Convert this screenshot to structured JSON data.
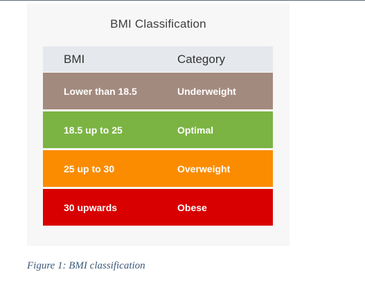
{
  "figure": {
    "title": "BMI Classification",
    "caption": "Figure 1: BMI classification"
  },
  "table": {
    "headers": [
      "BMI",
      "Category"
    ],
    "rows": [
      {
        "bmi": "Lower than 18.5",
        "category": "Underweight",
        "color": "#a38a7e"
      },
      {
        "bmi": "18.5 up to 25",
        "category": "Optimal",
        "color": "#7bb443"
      },
      {
        "bmi": "25 up to 30",
        "category": "Overweight",
        "color": "#fb8c00"
      },
      {
        "bmi": "30 upwards",
        "category": "Obese",
        "color": "#d80000"
      }
    ]
  },
  "colors": {
    "header_bg": "#e5e8ec",
    "panel_bg": "#f7f7f7",
    "caption_text": "#3d5a7a"
  }
}
